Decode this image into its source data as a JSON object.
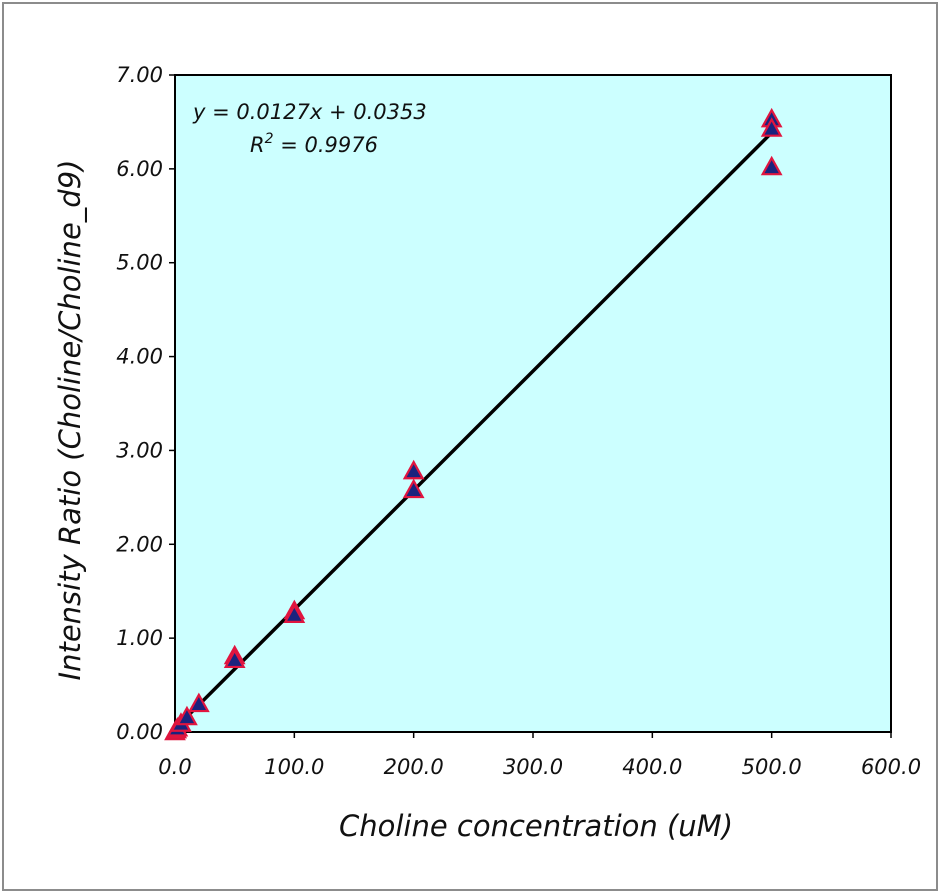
{
  "chart_data": {
    "type": "scatter",
    "xlabel": "Choline concentration (uM)",
    "ylabel": "Intensity Ratio (Choline/Choline_d9)",
    "xlim": [
      0,
      600
    ],
    "ylim": [
      0,
      7
    ],
    "x_ticks": [
      "0.0",
      "100.0",
      "200.0",
      "300.0",
      "400.0",
      "500.0",
      "600.0"
    ],
    "y_ticks": [
      "0.00",
      "1.00",
      "2.00",
      "3.00",
      "4.00",
      "5.00",
      "6.00",
      "7.00"
    ],
    "plot_background": "#ccffff",
    "marker": {
      "shape": "triangle",
      "fill": "#1a237e",
      "edge": "#e0153f"
    },
    "line_color": "#000000",
    "series": [
      {
        "points": [
          {
            "x": 0,
            "y": 0.0
          },
          {
            "x": 1,
            "y": 0.02
          },
          {
            "x": 2,
            "y": 0.04
          },
          {
            "x": 5,
            "y": 0.09
          },
          {
            "x": 10,
            "y": 0.16
          },
          {
            "x": 20,
            "y": 0.3
          },
          {
            "x": 50,
            "y": 0.81
          },
          {
            "x": 50,
            "y": 0.77
          },
          {
            "x": 100,
            "y": 1.29
          },
          {
            "x": 100,
            "y": 1.25
          },
          {
            "x": 200,
            "y": 2.78
          },
          {
            "x": 200,
            "y": 2.58
          },
          {
            "x": 500,
            "y": 6.53
          },
          {
            "x": 500,
            "y": 6.43
          },
          {
            "x": 500,
            "y": 6.02
          }
        ]
      }
    ],
    "trendline": {
      "slope": 0.0127,
      "intercept": 0.0353,
      "x_range": [
        0,
        500
      ],
      "equation": "y = 0.0127x + 0.0353",
      "r2_label": "R",
      "r2_exponent": "2",
      "r2_value": " = 0.9976"
    }
  }
}
